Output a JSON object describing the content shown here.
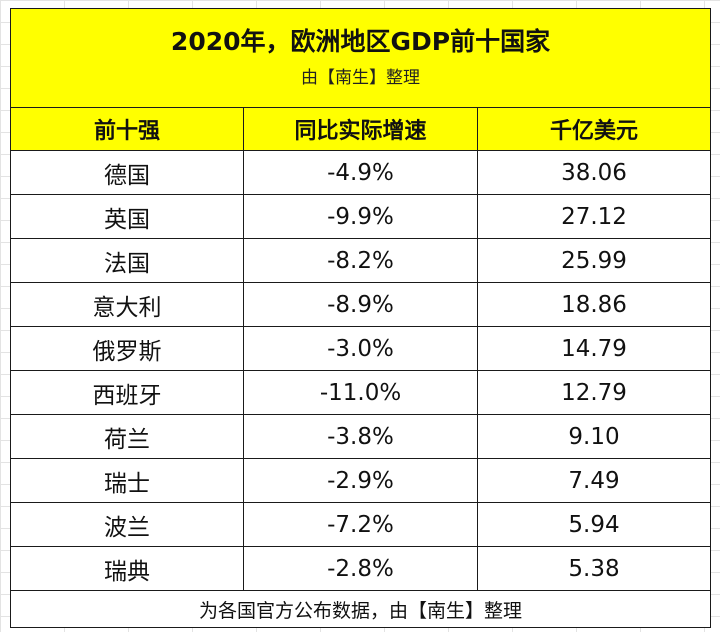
{
  "title": "2020年，欧洲地区GDP前十国家",
  "subtitle": "由【南生】整理",
  "columns": [
    "前十强",
    "同比实际增速",
    "千亿美元"
  ],
  "rows": [
    {
      "country": "德国",
      "growth": "-4.9%",
      "gdp": "38.06"
    },
    {
      "country": "英国",
      "growth": "-9.9%",
      "gdp": "27.12"
    },
    {
      "country": "法国",
      "growth": "-8.2%",
      "gdp": "25.99"
    },
    {
      "country": "意大利",
      "growth": "-8.9%",
      "gdp": "18.86"
    },
    {
      "country": "俄罗斯",
      "growth": "-3.0%",
      "gdp": "14.79"
    },
    {
      "country": "西班牙",
      "growth": "-11.0%",
      "gdp": "12.79"
    },
    {
      "country": "荷兰",
      "growth": "-3.8%",
      "gdp": "9.10"
    },
    {
      "country": "瑞士",
      "growth": "-2.9%",
      "gdp": "7.49"
    },
    {
      "country": "波兰",
      "growth": "-7.2%",
      "gdp": "5.94"
    },
    {
      "country": "瑞典",
      "growth": "-2.8%",
      "gdp": "5.38"
    }
  ],
  "footer": "为各国官方公布数据，由【南生】整理",
  "colors": {
    "header_bg": "#ffff00",
    "border": "#1a1a1a"
  }
}
